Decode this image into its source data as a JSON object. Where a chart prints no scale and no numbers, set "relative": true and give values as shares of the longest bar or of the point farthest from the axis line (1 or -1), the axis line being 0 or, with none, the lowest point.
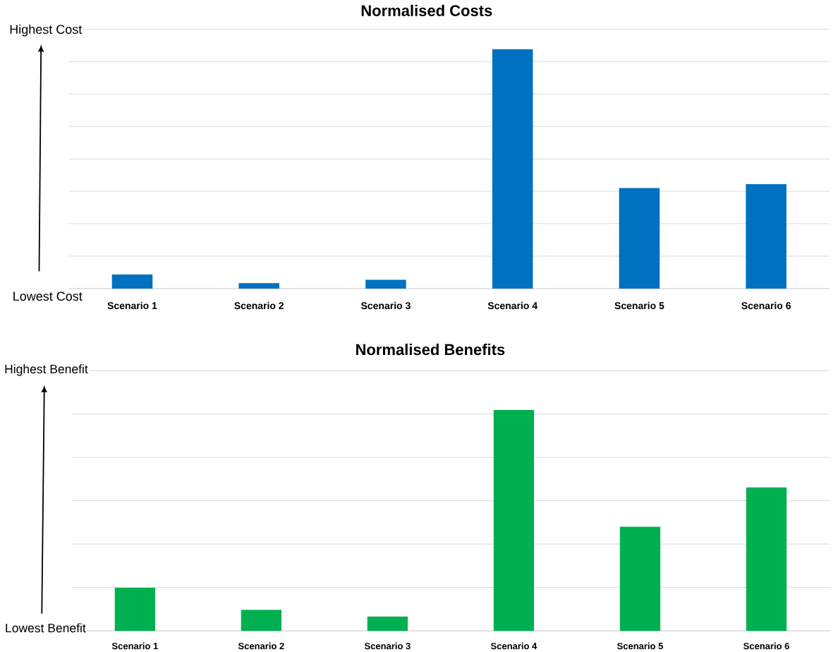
{
  "chart_data": [
    {
      "type": "bar",
      "title": "Normalised Costs",
      "categories": [
        "Scenario 1",
        "Scenario 2",
        "Scenario 3",
        "Scenario 4",
        "Scenario 5",
        "Scenario 6"
      ],
      "values": [
        0.059,
        0.023,
        0.037,
        1,
        0.42,
        0.436
      ],
      "color": "#0070c0",
      "relative": true,
      "grid": "y",
      "annotations": [
        "Highest Cost",
        "Lowest Cost"
      ]
    },
    {
      "type": "bar",
      "title": "Normalised Benefits",
      "categories": [
        "Scenario 1",
        "Scenario 2",
        "Scenario 3",
        "Scenario 4",
        "Scenario 5",
        "Scenario 6"
      ],
      "values": [
        0.195,
        0.095,
        0.065,
        1,
        0.471,
        0.649
      ],
      "color": "#00b050",
      "relative": true,
      "grid": "y",
      "annotations": [
        "Highest Benefit",
        "Lowest Benefit"
      ]
    }
  ]
}
